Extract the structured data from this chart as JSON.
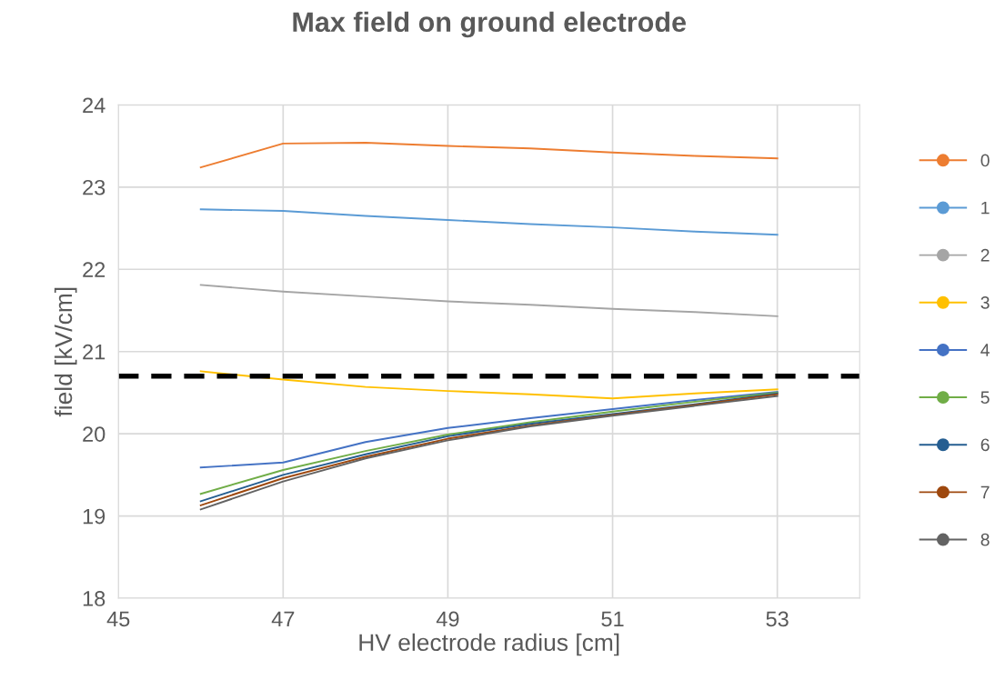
{
  "chart_data": {
    "type": "line",
    "title": "Max field on ground electrode",
    "xlabel": "HV electrode radius [cm]",
    "ylabel": "field [kV/cm]",
    "x": [
      46,
      47,
      48,
      49,
      50,
      51,
      52,
      53
    ],
    "series": [
      {
        "name": "0",
        "color": "#ed7d31",
        "values": [
          23.24,
          23.53,
          23.54,
          23.5,
          23.47,
          23.42,
          23.38,
          23.35
        ]
      },
      {
        "name": "1",
        "color": "#5b9bd5",
        "values": [
          22.73,
          22.71,
          22.65,
          22.6,
          22.55,
          22.51,
          22.46,
          22.42
        ]
      },
      {
        "name": "2",
        "color": "#a5a5a5",
        "values": [
          21.81,
          21.73,
          21.67,
          21.61,
          21.57,
          21.52,
          21.48,
          21.43
        ]
      },
      {
        "name": "3",
        "color": "#ffc000",
        "values": [
          20.76,
          20.66,
          20.57,
          20.52,
          20.48,
          20.43,
          20.49,
          20.54
        ]
      },
      {
        "name": "4",
        "color": "#4472c4",
        "values": [
          19.59,
          19.65,
          19.9,
          20.07,
          20.19,
          20.3,
          20.41,
          20.51
        ]
      },
      {
        "name": "5",
        "color": "#70ad47",
        "values": [
          19.27,
          19.56,
          19.79,
          19.99,
          20.14,
          20.27,
          20.39,
          20.5
        ]
      },
      {
        "name": "6",
        "color": "#255e91",
        "values": [
          19.18,
          19.5,
          19.75,
          19.97,
          20.12,
          20.24,
          20.36,
          20.49
        ]
      },
      {
        "name": "7",
        "color": "#9e480e",
        "values": [
          19.13,
          19.46,
          19.72,
          19.94,
          20.1,
          20.23,
          20.35,
          20.48
        ]
      },
      {
        "name": "8",
        "color": "#636363",
        "values": [
          19.08,
          19.42,
          19.7,
          19.92,
          20.09,
          20.22,
          20.34,
          20.46
        ]
      }
    ],
    "xlim": [
      45,
      54
    ],
    "xticks": [
      45,
      47,
      49,
      51,
      53
    ],
    "ylim": [
      18,
      24
    ],
    "yticks": [
      18,
      19,
      20,
      21,
      22,
      23,
      24
    ],
    "ref_lines": [
      {
        "axis": "y",
        "value": 20.7,
        "label": null,
        "color": "#000000",
        "line_style": "dashed"
      }
    ],
    "grid": true,
    "legend": "right"
  }
}
